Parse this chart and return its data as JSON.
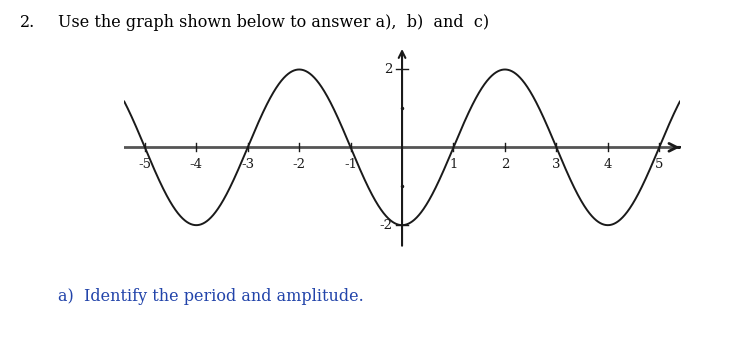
{
  "title": "Use the graph shown below to answer a),  b)  and  c)",
  "title_number": "2.",
  "subtitle": "a)  Identify the period and amplitude.",
  "xlim": [
    -5.4,
    5.4
  ],
  "ylim": [
    -2.6,
    2.6
  ],
  "amplitude": 2,
  "period": 4,
  "phase": 1.5707963267948966,
  "x_ticks": [
    -5,
    -4,
    -3,
    -2,
    -1,
    1,
    2,
    3,
    4,
    5
  ],
  "y_ticks": [
    -2,
    2
  ],
  "curve_color": "#1a1a1a",
  "axis_color": "#1a1a1a",
  "tick_label_color": "#1a1a1a",
  "text_color": "#2244aa",
  "title_color": "#000000",
  "background_color": "#ffffff",
  "font_size_title": 11.5,
  "font_size_ticks": 9.5,
  "font_size_subtitle": 11.5
}
